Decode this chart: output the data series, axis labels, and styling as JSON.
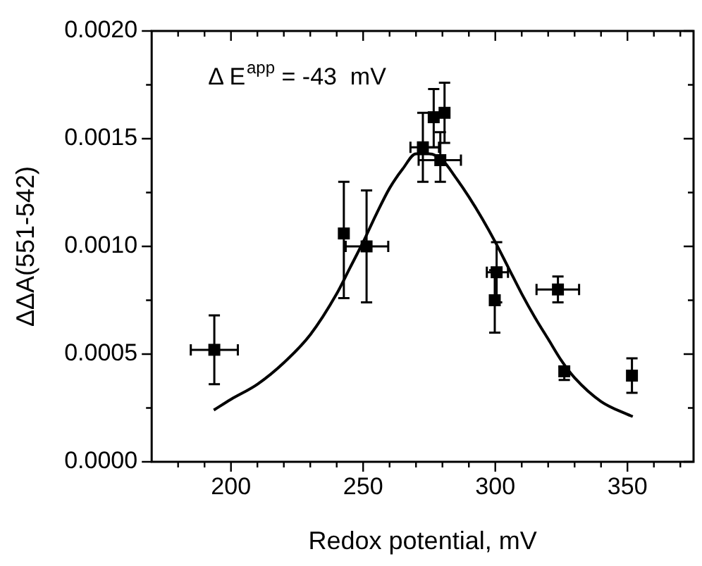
{
  "chart_data": {
    "type": "scatter",
    "xlabel": "Redox potential, mV",
    "ylabel": "ΔΔA(551-542)",
    "annotations": [
      "Δ E$^{app}$ = -43  mV"
    ],
    "xlim": [
      170,
      375
    ],
    "xticks": [
      {
        "value": 180,
        "label": null
      },
      {
        "value": 190,
        "label": null
      },
      200,
      {
        "value": 210,
        "label": null
      },
      {
        "value": 220,
        "label": null
      },
      {
        "value": 230,
        "label": null
      },
      {
        "value": 240,
        "label": null
      },
      250,
      {
        "value": 260,
        "label": null
      },
      {
        "value": 270,
        "label": null
      },
      {
        "value": 280,
        "label": null
      },
      {
        "value": 290,
        "label": null
      },
      300,
      {
        "value": 310,
        "label": null
      },
      {
        "value": 320,
        "label": null
      },
      {
        "value": 330,
        "label": null
      },
      {
        "value": 340,
        "label": null
      },
      350,
      {
        "value": 360,
        "label": null
      },
      {
        "value": 370,
        "label": null
      }
    ],
    "ylim": [
      0,
      0.002
    ],
    "yticks": [
      {
        "value": 0,
        "label": "0.0000"
      },
      {
        "value": 0.00025,
        "label": null
      },
      {
        "value": 0.0005,
        "label": "0.0005"
      },
      {
        "value": 0.00075,
        "label": null
      },
      {
        "value": 0.001,
        "label": "0.0010"
      },
      {
        "value": 0.00125,
        "label": null
      },
      {
        "value": 0.0015,
        "label": "0.0015"
      },
      {
        "value": 0.00175,
        "label": null
      },
      {
        "value": 0.002,
        "label": "0.0020"
      }
    ],
    "grid": false,
    "series": [
      {
        "color": "#000000",
        "marker": "square",
        "x": [
          193.7,
          242.7,
          251.3,
          272.6,
          276.7,
          280.8,
          279.2,
          300.5,
          299.8,
          323.7,
          326.1,
          351.7
        ],
        "values": [
          0.00052,
          0.00106,
          0.001,
          0.00146,
          0.0016,
          0.00162,
          0.0014,
          0.00088,
          0.00075,
          0.0008,
          0.00042,
          0.0004
        ],
        "errors": [
          [
            0.00036,
            0.00068
          ],
          [
            0.00076,
            0.0013
          ],
          [
            0.00074,
            0.00126
          ],
          [
            0.0013,
            0.00162
          ],
          [
            0.00146,
            0.00173
          ],
          [
            0.00148,
            0.00176
          ],
          [
            0.0013,
            0.00153
          ],
          [
            0.00074,
            0.00102
          ],
          [
            0.0006,
            0.00089
          ],
          [
            0.00074,
            0.00086
          ],
          [
            0.00038,
            0.00044
          ],
          [
            0.00032,
            0.00048
          ]
        ],
        "xerrors": [
          [
            184.8,
            202.6
          ],
          null,
          [
            243.4,
            259.5
          ],
          [
            267.9,
            278.7
          ],
          null,
          null,
          [
            271,
            287
          ],
          [
            296.8,
            304.8
          ],
          null,
          [
            315.6,
            331.7
          ],
          null,
          null
        ]
      },
      {
        "type": "line",
        "color": "#000000",
        "marker": "none",
        "x": [
          193.5,
          200,
          210,
          220,
          230,
          240,
          245,
          250,
          255,
          260,
          265,
          270,
          275,
          280,
          285,
          290,
          295,
          300,
          305,
          310,
          315,
          320,
          325,
          330,
          340,
          350,
          352
        ],
        "values": [
          0.00024,
          0.00029,
          0.00036,
          0.00046,
          0.00059,
          0.00078,
          0.0009,
          0.00102,
          0.00115,
          0.00127,
          0.00136,
          0.00143,
          0.00143,
          0.0014,
          0.00132,
          0.00123,
          0.00113,
          0.00102,
          0.0009,
          0.00078,
          0.00067,
          0.00057,
          0.00047,
          0.00039,
          0.00028,
          0.00022,
          0.00021
        ]
      }
    ]
  }
}
